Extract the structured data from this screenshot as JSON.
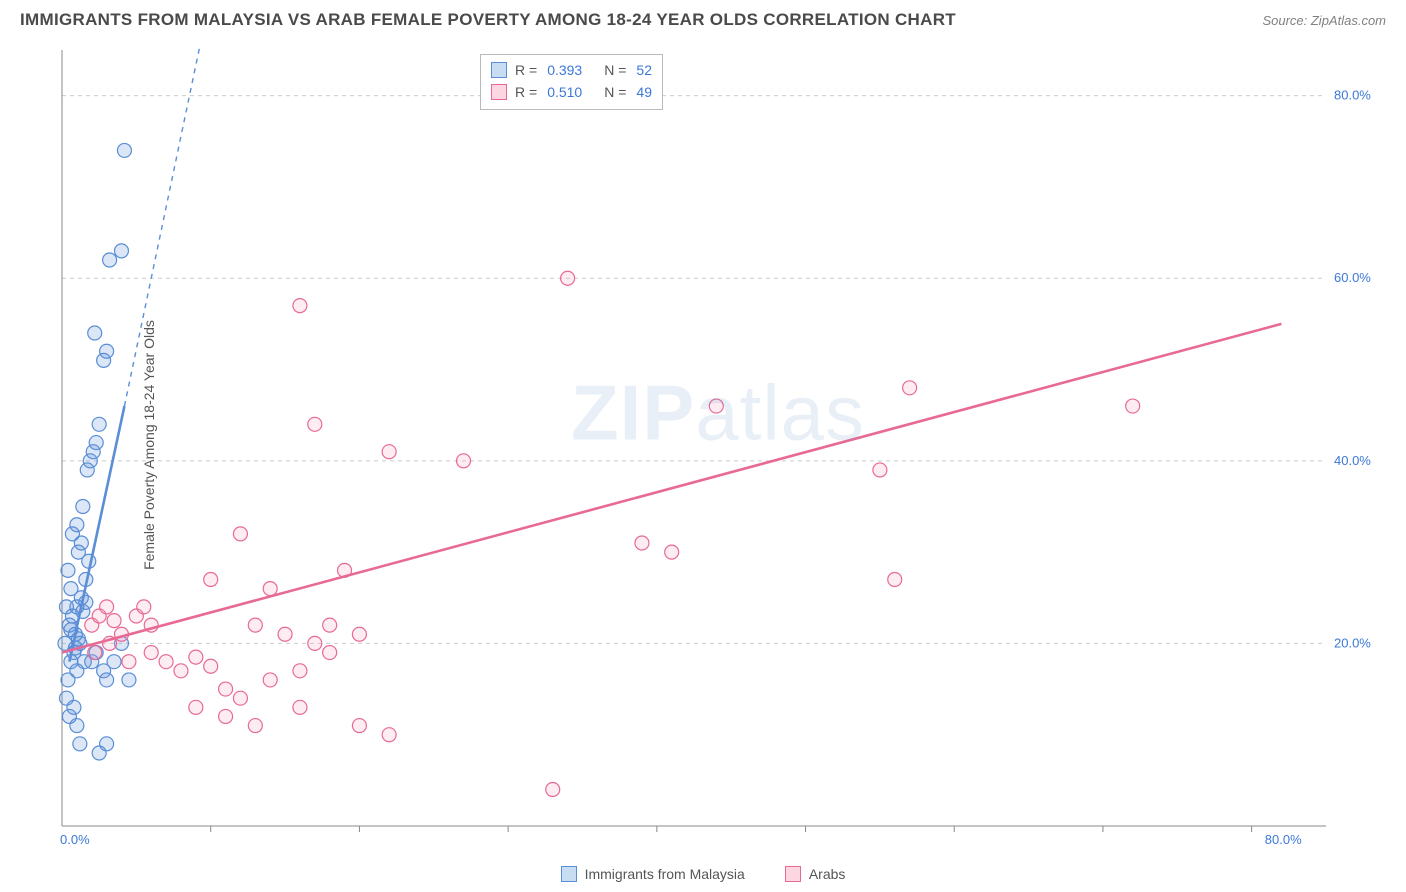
{
  "title": "IMMIGRANTS FROM MALAYSIA VS ARAB FEMALE POVERTY AMONG 18-24 YEAR OLDS CORRELATION CHART",
  "source": "Source: ZipAtlas.com",
  "watermark": "ZIPatlas",
  "watermark_bold_prefix_len": 3,
  "yaxis_label": "Female Poverty Among 18-24 Year Olds",
  "chart": {
    "type": "scatter",
    "background_color": "#ffffff",
    "grid_color": "#cccccc",
    "axis_color": "#888888",
    "xlim": [
      0,
      85
    ],
    "ylim": [
      0,
      85
    ],
    "yticks": [
      20,
      40,
      60,
      80
    ],
    "ytick_labels": [
      "20.0%",
      "40.0%",
      "60.0%",
      "80.0%"
    ],
    "xtick_origin_label": "0.0%",
    "xtick_end_label": "80.0%",
    "xtick_end_value": 80,
    "xtick_minor": [
      10,
      20,
      30,
      40,
      50,
      60,
      70,
      80
    ],
    "marker_radius": 7,
    "marker_stroke_width": 1.2,
    "marker_fill_opacity": 0.22,
    "trend_line_width": 2.6,
    "trend_dash_width": 1.4,
    "series": [
      {
        "name": "Immigrants from Malaysia",
        "color": "#5a8ed6",
        "fill": "#5a8ed6",
        "R": "0.393",
        "N": "52",
        "trend": {
          "x1": 0.5,
          "y1": 18,
          "x2": 4.2,
          "y2": 46,
          "dash_to_x": 10.5,
          "dash_to_y": 95
        },
        "points": [
          [
            0.4,
            16
          ],
          [
            0.6,
            18
          ],
          [
            0.8,
            19
          ],
          [
            1.0,
            17
          ],
          [
            0.3,
            14
          ],
          [
            1.2,
            20
          ],
          [
            1.5,
            18
          ],
          [
            0.5,
            22
          ],
          [
            0.7,
            23
          ],
          [
            1.0,
            24
          ],
          [
            1.3,
            25
          ],
          [
            0.9,
            21
          ],
          [
            0.6,
            26
          ],
          [
            0.4,
            28
          ],
          [
            2.0,
            18
          ],
          [
            2.3,
            19
          ],
          [
            2.8,
            17
          ],
          [
            3.0,
            16
          ],
          [
            3.5,
            18
          ],
          [
            4.0,
            20
          ],
          [
            4.5,
            16
          ],
          [
            1.1,
            30
          ],
          [
            1.3,
            31
          ],
          [
            1.0,
            33
          ],
          [
            1.4,
            35
          ],
          [
            0.7,
            32
          ],
          [
            1.8,
            29
          ],
          [
            1.6,
            27
          ],
          [
            2.1,
            41
          ],
          [
            2.3,
            42
          ],
          [
            1.7,
            39
          ],
          [
            2.5,
            44
          ],
          [
            1.9,
            40
          ],
          [
            3.0,
            52
          ],
          [
            2.2,
            54
          ],
          [
            2.8,
            51
          ],
          [
            3.2,
            62
          ],
          [
            4.0,
            63
          ],
          [
            4.2,
            74
          ],
          [
            0.5,
            12
          ],
          [
            0.8,
            13
          ],
          [
            1.0,
            11
          ],
          [
            2.5,
            8
          ],
          [
            3.0,
            9
          ],
          [
            1.2,
            9
          ],
          [
            1.4,
            23.5
          ],
          [
            1.6,
            24.5
          ],
          [
            0.9,
            19.5
          ],
          [
            1.1,
            20.5
          ],
          [
            0.6,
            21.5
          ],
          [
            0.3,
            24
          ],
          [
            0.2,
            20
          ]
        ]
      },
      {
        "name": "Arabs",
        "color": "#e86a94",
        "fill": "#f5a8bf",
        "R": "0.510",
        "N": "49",
        "trend": {
          "x1": 0,
          "y1": 19,
          "x2": 82,
          "y2": 55
        },
        "points": [
          [
            2,
            22
          ],
          [
            2.5,
            23
          ],
          [
            3,
            24
          ],
          [
            3.5,
            22.5
          ],
          [
            4,
            21
          ],
          [
            5,
            23
          ],
          [
            6,
            22
          ],
          [
            5.5,
            24
          ],
          [
            7,
            18
          ],
          [
            8,
            17
          ],
          [
            9,
            18.5
          ],
          [
            10,
            17.5
          ],
          [
            11,
            15
          ],
          [
            12,
            14
          ],
          [
            14,
            16
          ],
          [
            16,
            17
          ],
          [
            13,
            22
          ],
          [
            15,
            21
          ],
          [
            17,
            20
          ],
          [
            18,
            22
          ],
          [
            20,
            21
          ],
          [
            10,
            27
          ],
          [
            12,
            32
          ],
          [
            14,
            26
          ],
          [
            19,
            28
          ],
          [
            9,
            13
          ],
          [
            11,
            12
          ],
          [
            13,
            11
          ],
          [
            16,
            13
          ],
          [
            20,
            11
          ],
          [
            22,
            10
          ],
          [
            17,
            44
          ],
          [
            22,
            41
          ],
          [
            27,
            40
          ],
          [
            16,
            57
          ],
          [
            34,
            60
          ],
          [
            39,
            31
          ],
          [
            44,
            46
          ],
          [
            41,
            30
          ],
          [
            55,
            39
          ],
          [
            56,
            27
          ],
          [
            57,
            48
          ],
          [
            72,
            46
          ],
          [
            33,
            4
          ],
          [
            18,
            19
          ],
          [
            6,
            19
          ],
          [
            4.5,
            18
          ],
          [
            3.2,
            20
          ],
          [
            2.2,
            19
          ]
        ]
      }
    ]
  },
  "legend_r": {
    "rows": [
      {
        "swatch_fill": "#c8dcf2",
        "swatch_border": "#5a8ed6",
        "R": "0.393",
        "N": "52"
      },
      {
        "swatch_fill": "#fcd7e2",
        "swatch_border": "#e86a94",
        "R": "0.510",
        "N": "49"
      }
    ],
    "R_label": "R =",
    "N_label": "N ="
  },
  "bottom_legend": [
    {
      "swatch_fill": "#c8dcf2",
      "swatch_border": "#5a8ed6",
      "label": "Immigrants from Malaysia"
    },
    {
      "swatch_fill": "#fcd7e2",
      "swatch_border": "#e86a94",
      "label": "Arabs"
    }
  ]
}
